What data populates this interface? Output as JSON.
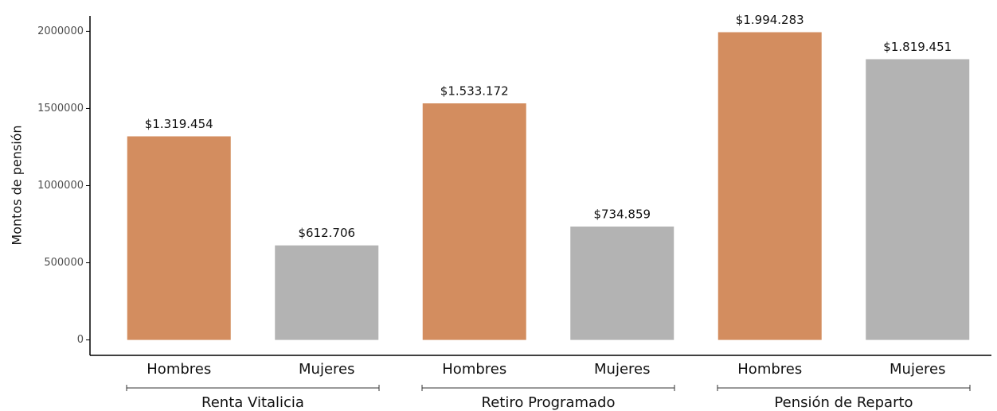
{
  "chart_data": {
    "type": "bar",
    "y_label": "Montos de pensión",
    "categories": [
      "Hombres",
      "Mujeres",
      "Hombres",
      "Mujeres",
      "Hombres",
      "Mujeres"
    ],
    "groups": [
      "Renta Vitalicia",
      "Retiro Programado",
      "Pensión de Reparto"
    ],
    "values": [
      1319454,
      612706,
      1533172,
      734859,
      1994283,
      1819451
    ],
    "value_labels": [
      "$1.319.454",
      "$612.706",
      "$1.533.172",
      "$734.859",
      "$1.994.283",
      "$1.819.451"
    ],
    "colors": [
      "#d38d5f",
      "#b3b3b3",
      "#d38d5f",
      "#b3b3b3",
      "#d38d5f",
      "#b3b3b3"
    ],
    "ylim": [
      -100000,
      2100000
    ],
    "yticks": [
      0,
      500000,
      1000000,
      1500000,
      2000000
    ],
    "grid": false
  }
}
